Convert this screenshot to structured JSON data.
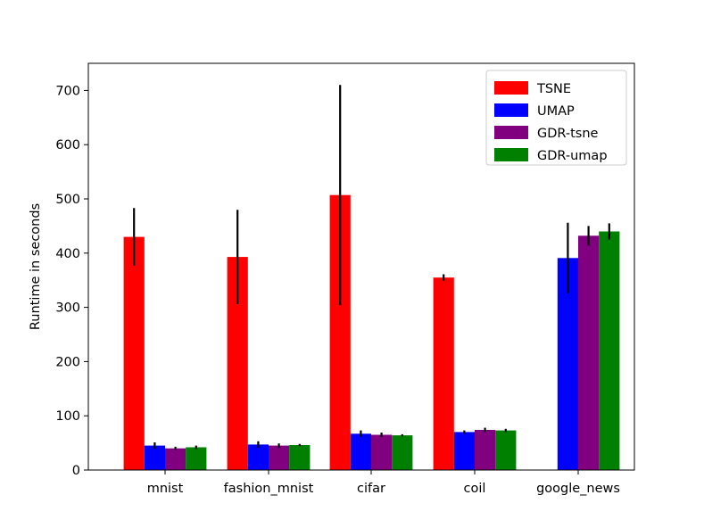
{
  "chart_data": {
    "type": "bar",
    "title": "",
    "xlabel": "",
    "ylabel": "Runtime in seconds",
    "ylim": [
      0,
      750
    ],
    "yticks": [
      0,
      100,
      200,
      300,
      400,
      500,
      600,
      700
    ],
    "categories": [
      "mnist",
      "fashion_mnist",
      "cifar",
      "coil",
      "google_news"
    ],
    "legend_position": "top-right",
    "series": [
      {
        "name": "TSNE",
        "color": "#ff0000",
        "values": [
          430,
          393,
          507,
          355,
          null
        ],
        "errors": [
          53,
          87,
          203,
          6,
          null
        ]
      },
      {
        "name": "UMAP",
        "color": "#0000ff",
        "values": [
          45,
          47,
          67,
          70,
          391
        ],
        "errors": [
          6,
          6,
          6,
          3,
          65
        ]
      },
      {
        "name": "GDR-tsne",
        "color": "#800080",
        "values": [
          40,
          45,
          65,
          74,
          432
        ],
        "errors": [
          3,
          4,
          4,
          4,
          18
        ]
      },
      {
        "name": "GDR-umap",
        "color": "#008000",
        "values": [
          42,
          46,
          64,
          73,
          440
        ],
        "errors": [
          3,
          2,
          2,
          3,
          15
        ]
      }
    ]
  }
}
